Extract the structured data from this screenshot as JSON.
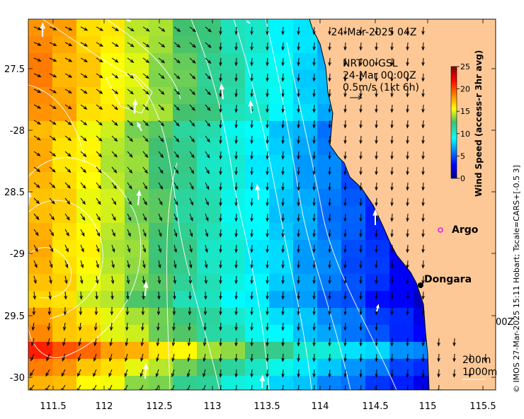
{
  "map": {
    "title": "24-Mar-2025 04Z",
    "lon_ticks": [
      "111.5",
      "112",
      "112.5",
      "113",
      "113.5",
      "114",
      "114.5",
      "115",
      "115.5"
    ],
    "lat_ticks": [
      "-27.5",
      "-28",
      "-28.5",
      "-29",
      "-29.5",
      "-30"
    ],
    "lat_tick_display": [
      "27.5",
      "-28",
      "28.5",
      "-29",
      "29.5",
      "-30"
    ],
    "lon_range": [
      111.3,
      115.6
    ],
    "lat_range": [
      -30.1,
      -27.05
    ],
    "ocean_colormap": "jet (wind speed)",
    "land_color": "#fdc896",
    "places": [
      {
        "name": "Dongara",
        "lon": 114.93,
        "lat": -29.25
      },
      {
        "name": "Argo",
        "lon": 115.1,
        "lat": -28.9
      }
    ]
  },
  "wind_legend": {
    "line1": "NRT00 GSL",
    "line2": "24-Mar 00:00Z",
    "line3": "0.5m/s (1kt 6h)"
  },
  "colorbar": {
    "label": "Wind Speed (access-r 3hr avg)",
    "ticks": [
      "25",
      "20",
      "15",
      "10",
      "5",
      "0"
    ],
    "min": 0,
    "max": 25
  },
  "depth_legend": {
    "line1": "200m",
    "line2": "1000m"
  },
  "partial_label": "00Z",
  "credit": "© IMOS 27-Mar-2025 15:11 Hobart; Tscale=CARS+[-0.5 3]",
  "colors": {
    "land": "#fdc896",
    "arrow_black": "#000000",
    "arrow_white": "#ffffff",
    "argo_marker": "#e020e0"
  }
}
